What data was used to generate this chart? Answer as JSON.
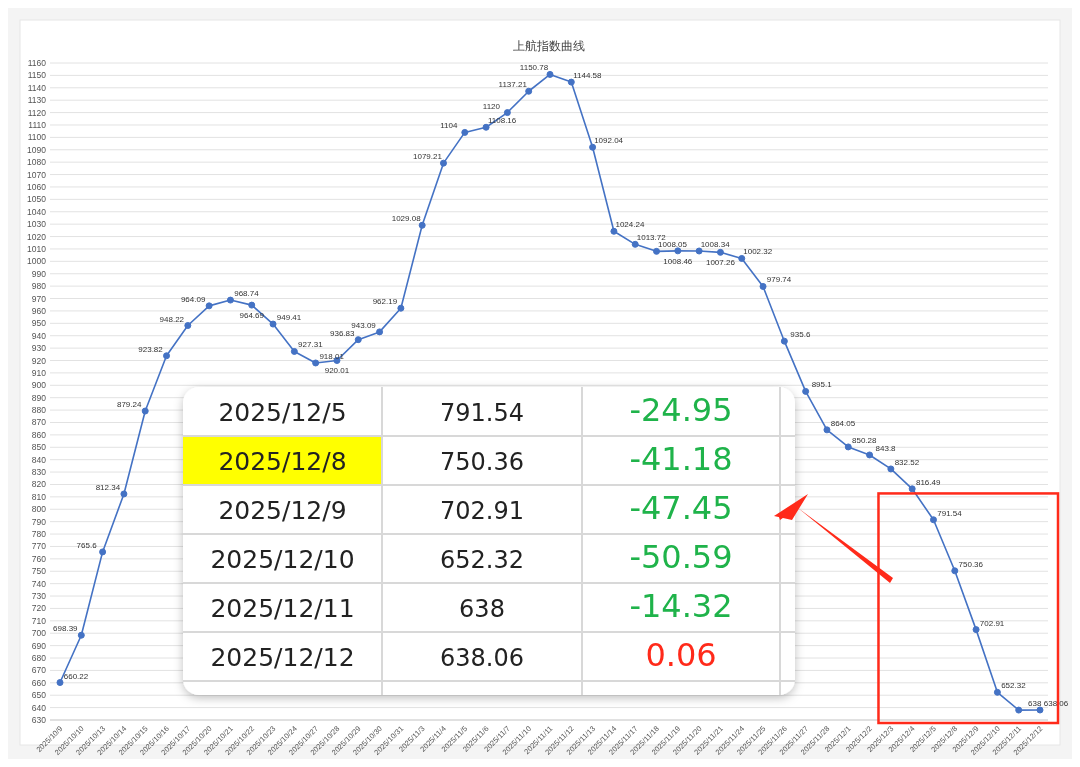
{
  "chart_data": [
    {
      "type": "line",
      "title": "上航指数曲线",
      "categories": [
        "2025/10/9",
        "2025/10/10",
        "2025/10/13",
        "2025/10/14",
        "2025/10/15",
        "2025/10/16",
        "2025/10/17",
        "2025/10/20",
        "2025/10/21",
        "2025/10/22",
        "2025/10/23",
        "2025/10/24",
        "2025/10/27",
        "2025/10/28",
        "2025/10/29",
        "2025/10/30",
        "2025/10/31",
        "2025/11/3",
        "2025/11/4",
        "2025/11/5",
        "2025/11/6",
        "2025/11/7",
        "2025/11/10",
        "2025/11/11",
        "2025/11/12",
        "2025/11/13",
        "2025/11/14",
        "2025/11/17",
        "2025/11/18",
        "2025/11/19",
        "2025/11/20",
        "2025/11/21",
        "2025/11/24",
        "2025/11/25",
        "2025/11/26",
        "2025/11/27",
        "2025/11/28",
        "2025/12/1",
        "2025/12/2",
        "2025/12/3",
        "2025/12/4",
        "2025/12/5",
        "2025/12/8",
        "2025/12/9",
        "2025/12/10",
        "2025/12/11",
        "2025/12/12"
      ],
      "series": [
        {
          "color": "#4472c4",
          "values": [
            660.22,
            698.39,
            765.6,
            812.34,
            879.24,
            923.82,
            948.22,
            964.09,
            968.74,
            964.69,
            949.41,
            927.31,
            918.01,
            920.01,
            936.83,
            943.09,
            962.19,
            1029.08,
            1079.21,
            1104,
            1108.16,
            1120,
            1137.21,
            1150.78,
            1144.58,
            1092.04,
            1024.24,
            1013.72,
            1008.05,
            1008.46,
            1008.34,
            1007.26,
            1002.32,
            979.74,
            935.6,
            895.1,
            864.05,
            850.28,
            843.8,
            832.52,
            816.49,
            791.54,
            750.36,
            702.91,
            652.32,
            638,
            638.06
          ]
        }
      ],
      "ylim": [
        630,
        1160
      ],
      "yticks": [
        630,
        640,
        650,
        660,
        670,
        680,
        690,
        700,
        710,
        720,
        730,
        740,
        750,
        760,
        770,
        780,
        790,
        800,
        810,
        820,
        830,
        840,
        850,
        860,
        870,
        880,
        890,
        900,
        910,
        920,
        930,
        940,
        950,
        960,
        970,
        980,
        990,
        1000,
        1010,
        1020,
        1030,
        1040,
        1050,
        1060,
        1070,
        1080,
        1090,
        1100,
        1110,
        1120,
        1130,
        1140,
        1150,
        1160
      ],
      "grid": "y",
      "marker": "circle",
      "data_labels": true
    },
    {
      "type": "other",
      "categories": [
        "2025/12/5",
        "2025/12/8",
        "2025/12/9",
        "2025/12/10",
        "2025/12/11",
        "2025/12/12"
      ],
      "series": [
        {
          "values": [
            791.54,
            750.36,
            702.91,
            652.32,
            638,
            638.06
          ]
        },
        {
          "colors": [
            "#1fb34a",
            "#1fb34a",
            "#1fb34a",
            "#1fb34a",
            "#1fb34a",
            "#ff2a1a"
          ],
          "values": [
            -24.95,
            -41.18,
            -47.45,
            -50.59,
            -14.32,
            0.06
          ]
        }
      ],
      "data_labels": true
    }
  ]
}
